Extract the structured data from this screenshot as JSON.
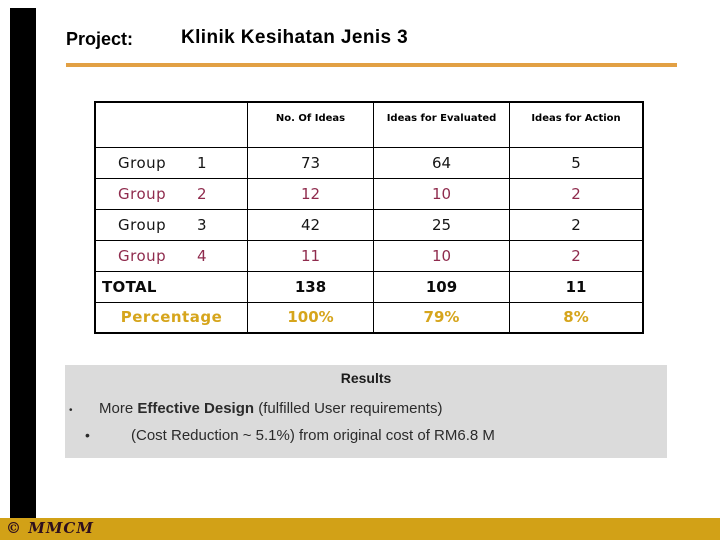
{
  "header": {
    "project_label": "Project:",
    "title": "Klinik Kesihatan Jenis 3"
  },
  "table": {
    "columns": [
      "",
      "No. Of Ideas",
      "Ideas for Evaluated",
      "Ideas for Action"
    ],
    "rows": [
      {
        "label": "Group",
        "num": "1",
        "values": [
          "73",
          "64",
          "5"
        ],
        "variant": "black"
      },
      {
        "label": "Group",
        "num": "2",
        "values": [
          "12",
          "10",
          "2"
        ],
        "variant": "maroon"
      },
      {
        "label": "Group",
        "num": "3",
        "values": [
          "42",
          "25",
          "2"
        ],
        "variant": "black"
      },
      {
        "label": "Group",
        "num": "4",
        "values": [
          "11",
          "10",
          "2"
        ],
        "variant": "maroon"
      }
    ],
    "total": {
      "label": "TOTAL",
      "values": [
        "138",
        "109",
        "11"
      ]
    },
    "percentage": {
      "label": "Percentage",
      "values": [
        "100%",
        "79%",
        "8%"
      ]
    }
  },
  "results": {
    "heading": "Results",
    "bullets": [
      {
        "style": "b1",
        "segments": [
          {
            "text": "More ",
            "bold": false
          },
          {
            "text": "Effective Design",
            "bold": true
          },
          {
            "text": " (fulfilled User requirements)",
            "bold": false
          }
        ]
      },
      {
        "style": "b2",
        "segments": [
          {
            "text": "(Cost Reduction ~ 5.1%) from original cost of RM6.8 M",
            "bold": false
          }
        ]
      }
    ]
  },
  "footer": {
    "copyright": "© MMCM"
  },
  "colors": {
    "maroon": "#8F2B4D",
    "gold-text": "#D6A51C",
    "gold-bar": "#D2A117",
    "orange-line": "#E2A044",
    "results-bg": "#DBDBDB"
  }
}
